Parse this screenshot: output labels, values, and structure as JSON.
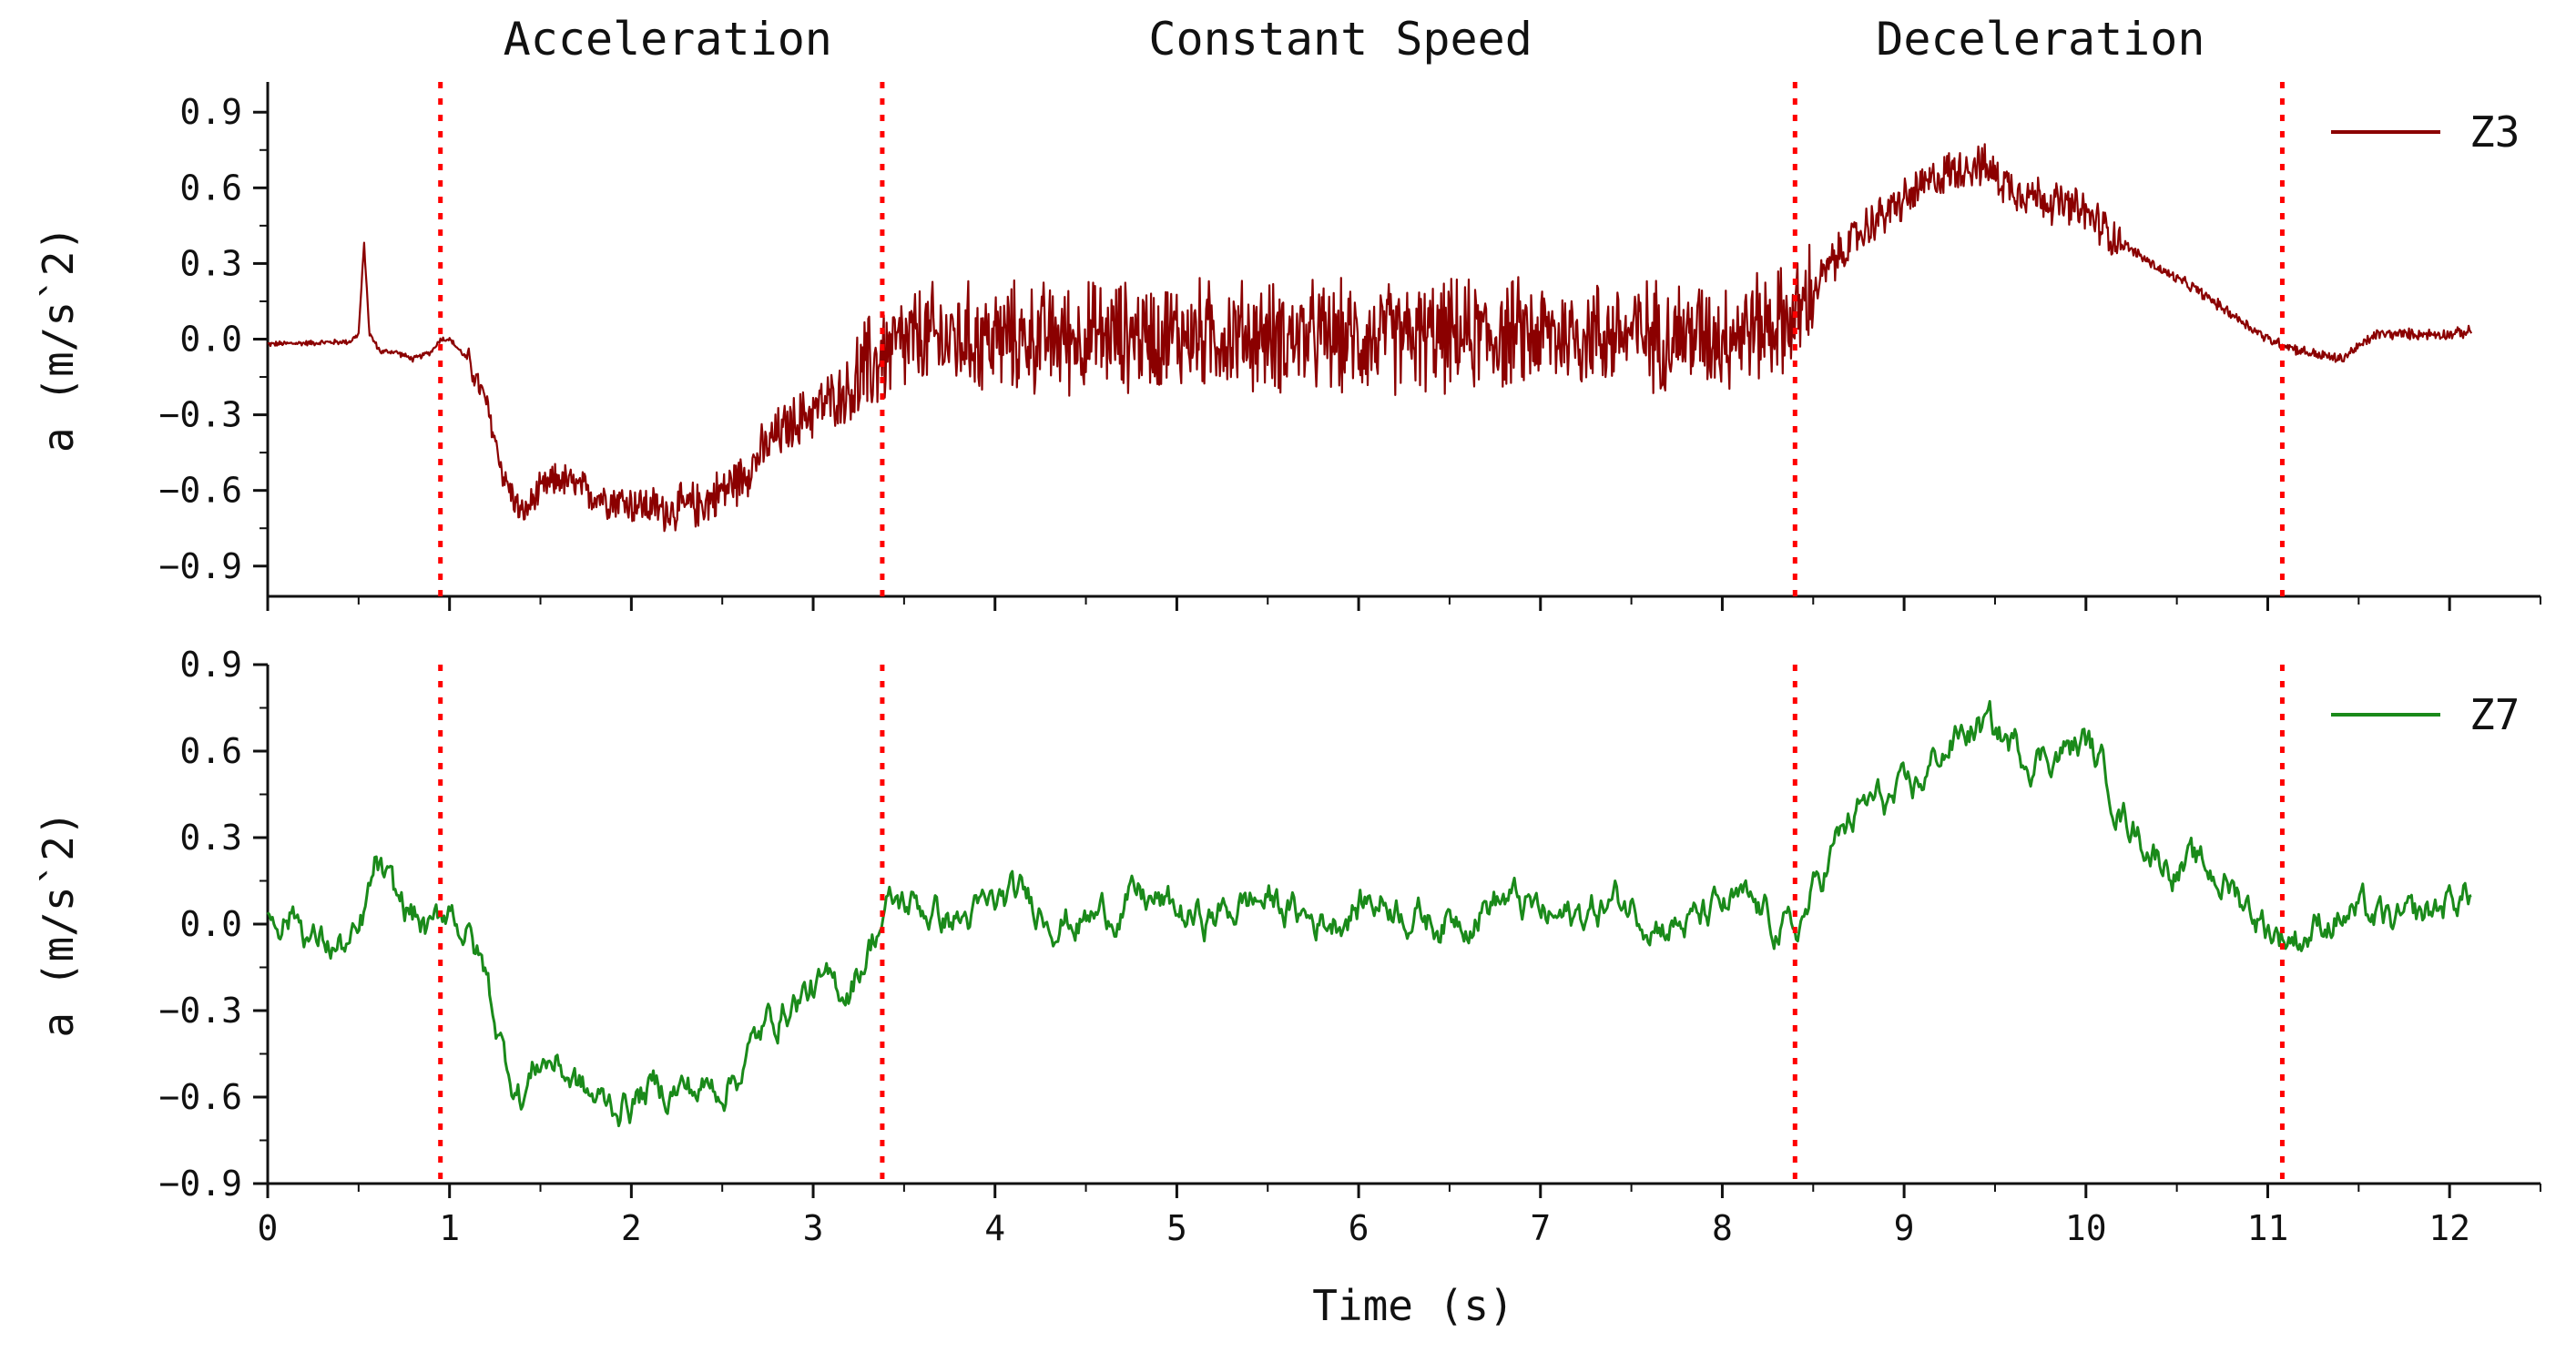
{
  "chart_data": [
    {
      "type": "line",
      "panel": "top",
      "ylabel": "a (m/s^2)",
      "xlim": [
        0,
        12.5
      ],
      "ylim": [
        -1.02,
        1.02
      ],
      "yticks": [
        -0.9,
        -0.6,
        -0.3,
        0.0,
        0.3,
        0.6,
        0.9
      ],
      "ytick_labels": [
        "-0.9",
        "-0.6",
        "-0.3",
        "0.0",
        "0.3",
        "0.6",
        "0.9"
      ],
      "legend": "top-right",
      "series": [
        {
          "name": "Z3",
          "color": "#8b0000",
          "noise": "high",
          "x": [
            0,
            0.45,
            0.5,
            0.53,
            0.56,
            0.62,
            0.7,
            0.8,
            0.9,
            0.95,
            1.0,
            1.1,
            1.2,
            1.3,
            1.4,
            1.5,
            1.6,
            1.8,
            2.0,
            2.2,
            2.4,
            2.6,
            2.8,
            3.0,
            3.2,
            3.4,
            3.6,
            4.0,
            5.0,
            6.0,
            7.0,
            8.0,
            8.4,
            8.6,
            8.8,
            9.0,
            9.2,
            9.4,
            9.6,
            9.8,
            10.0,
            10.2,
            10.4,
            10.6,
            10.8,
            11.0,
            11.2,
            11.4,
            11.6,
            11.8,
            12.0,
            12.12
          ],
          "y": [
            -0.02,
            -0.01,
            0.02,
            0.38,
            0.02,
            -0.05,
            -0.05,
            -0.08,
            -0.05,
            0.0,
            0.0,
            -0.08,
            -0.25,
            -0.55,
            -0.7,
            -0.6,
            -0.55,
            -0.62,
            -0.65,
            -0.68,
            -0.65,
            -0.55,
            -0.38,
            -0.28,
            -0.2,
            -0.05,
            0.0,
            0.0,
            0.02,
            0.0,
            0.02,
            0.02,
            0.08,
            0.3,
            0.45,
            0.55,
            0.65,
            0.7,
            0.6,
            0.55,
            0.5,
            0.38,
            0.28,
            0.2,
            0.1,
            0.0,
            -0.05,
            -0.08,
            0.02,
            0.02,
            0.02,
            0.03
          ]
        }
      ]
    },
    {
      "type": "line",
      "panel": "bottom",
      "ylabel": "a (m/s^2)",
      "xlabel": "Time (s)",
      "xlim": [
        0,
        12.5
      ],
      "ylim": [
        -0.9,
        0.9
      ],
      "xticks": [
        0,
        1,
        2,
        3,
        4,
        5,
        6,
        7,
        8,
        9,
        10,
        11,
        12
      ],
      "xtick_labels": [
        "0",
        "1",
        "2",
        "3",
        "4",
        "5",
        "6",
        "7",
        "8",
        "9",
        "10",
        "11",
        "12"
      ],
      "yticks": [
        -0.9,
        -0.6,
        -0.3,
        0.0,
        0.3,
        0.6,
        0.9
      ],
      "ytick_labels": [
        "-0.9",
        "-0.6",
        "-0.3",
        "0.0",
        "0.3",
        "0.6",
        "0.9"
      ],
      "legend": "top-right",
      "series": [
        {
          "name": "Z7",
          "color": "#1a8a1a",
          "noise": "low",
          "x": [
            0,
            0.15,
            0.25,
            0.4,
            0.5,
            0.6,
            0.7,
            0.8,
            0.9,
            1.0,
            1.1,
            1.2,
            1.3,
            1.4,
            1.5,
            1.6,
            1.8,
            2.0,
            2.2,
            2.4,
            2.6,
            2.8,
            3.0,
            3.2,
            3.4,
            3.6,
            4.0,
            5.0,
            6.0,
            7.0,
            8.0,
            8.4,
            8.6,
            8.8,
            9.0,
            9.2,
            9.4,
            9.6,
            9.8,
            10.0,
            10.2,
            10.4,
            10.6,
            10.8,
            11.0,
            11.2,
            11.4,
            11.6,
            11.8,
            12.0,
            12.12
          ],
          "y": [
            0.02,
            0.01,
            -0.08,
            -0.06,
            -0.04,
            0.22,
            0.05,
            0.0,
            -0.08,
            0.08,
            0.0,
            -0.15,
            -0.45,
            -0.62,
            -0.5,
            -0.5,
            -0.58,
            -0.62,
            -0.6,
            -0.55,
            -0.48,
            -0.35,
            -0.22,
            -0.18,
            0.02,
            0.05,
            0.05,
            0.05,
            0.05,
            0.05,
            0.03,
            0.0,
            0.25,
            0.38,
            0.45,
            0.62,
            0.65,
            0.62,
            0.63,
            0.6,
            0.38,
            0.28,
            0.18,
            0.1,
            0.02,
            -0.02,
            0.0,
            0.02,
            0.03,
            0.05,
            0.08
          ]
        }
      ]
    }
  ],
  "phases": {
    "boundaries": [
      0.95,
      3.38,
      8.4,
      11.08
    ],
    "boundary_color": "#ff0000",
    "labels": [
      {
        "text": "Acceleration",
        "x": 2.2
      },
      {
        "text": "Constant Speed",
        "x": 5.9
      },
      {
        "text": "Deceleration",
        "x": 9.75
      }
    ]
  }
}
